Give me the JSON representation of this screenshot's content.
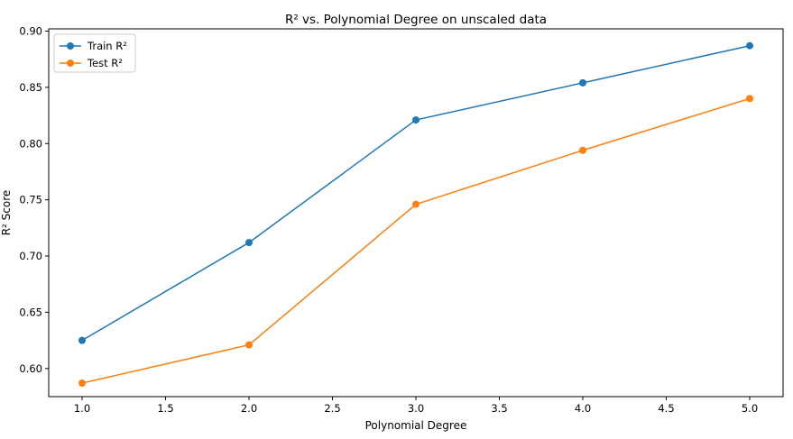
{
  "chart_data": {
    "type": "line",
    "title": "R² vs. Polynomial Degree on unscaled data",
    "xlabel": "Polynomial Degree",
    "ylabel": "R² Score",
    "x": [
      1.0,
      2.0,
      3.0,
      4.0,
      5.0
    ],
    "xlim": [
      0.8,
      5.2
    ],
    "ylim": [
      0.575,
      0.902
    ],
    "xticks": [
      1.0,
      1.5,
      2.0,
      2.5,
      3.0,
      3.5,
      4.0,
      4.5,
      5.0
    ],
    "xtick_labels": [
      "1.0",
      "1.5",
      "2.0",
      "2.5",
      "3.0",
      "3.5",
      "4.0",
      "4.5",
      "5.0"
    ],
    "yticks": [
      0.6,
      0.65,
      0.7,
      0.75,
      0.8,
      0.85,
      0.9
    ],
    "ytick_labels": [
      "0.60",
      "0.65",
      "0.70",
      "0.75",
      "0.80",
      "0.85",
      "0.90"
    ],
    "grid": false,
    "legend_position": "top-left",
    "series": [
      {
        "name": "Train R²",
        "color": "#1f77b4",
        "marker": "circle",
        "values": [
          0.625,
          0.712,
          0.821,
          0.854,
          0.887
        ]
      },
      {
        "name": "Test R²",
        "color": "#ff7f0e",
        "marker": "circle",
        "values": [
          0.587,
          0.621,
          0.746,
          0.794,
          0.84
        ]
      }
    ]
  }
}
